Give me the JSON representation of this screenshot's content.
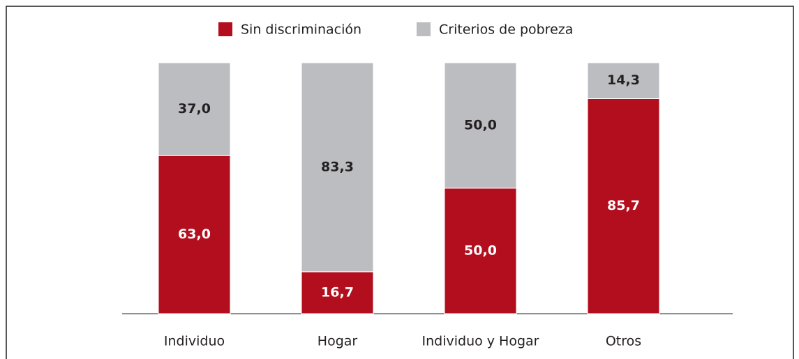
{
  "chart_data": {
    "type": "stacked_bar",
    "categories": [
      "Individuo",
      "Hogar",
      "Individuo y Hogar",
      "Otros"
    ],
    "series": [
      {
        "name": "Sin discriminación",
        "color": "#b20e1d",
        "values": [
          63.0,
          16.7,
          50.0,
          85.7
        ],
        "value_labels": [
          "63,0",
          "16,7",
          "50,0",
          "85,7"
        ]
      },
      {
        "name": "Criterios de pobreza",
        "color": "#bcbdc0",
        "values": [
          37.0,
          83.3,
          50.0,
          14.3
        ],
        "value_labels": [
          "37,0",
          "83,3",
          "50,0",
          "14,3"
        ]
      }
    ],
    "ylim": [
      0,
      100
    ]
  }
}
